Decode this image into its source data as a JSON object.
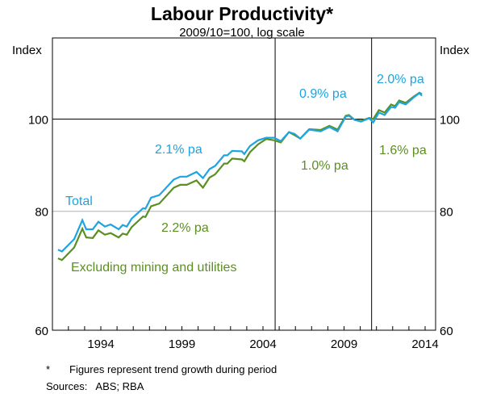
{
  "chart_data": {
    "type": "line",
    "title": "Labour Productivity*",
    "subtitle": "2009/10=100, log scale",
    "ylabel_left": "Index",
    "ylabel_right": "Index",
    "yscale": "log",
    "ylim": [
      60,
      121.7
    ],
    "yticks": [
      60,
      80,
      100
    ],
    "xlim": [
      1991,
      2014.5
    ],
    "xticks": [
      1994,
      1999,
      2004,
      2009,
      2014
    ],
    "vlines": [
      2004.75,
      2010.7
    ],
    "colors": {
      "total": "#1ea4e0",
      "excl": "#5b8f22"
    },
    "x": [
      1991.36,
      1991.6,
      1992.36,
      1992.86,
      1993.1,
      1993.5,
      1993.85,
      1994.25,
      1994.6,
      1995.1,
      1995.35,
      1995.6,
      1995.9,
      1996.6,
      1996.75,
      1997.1,
      1997.6,
      1998.5,
      1998.9,
      1999.3,
      1999.9,
      2000.3,
      2000.7,
      2001.05,
      2001.6,
      2001.8,
      2002.1,
      2002.7,
      2002.85,
      2003.2,
      2003.7,
      2004.2,
      2004.7,
      2005.1,
      2005.6,
      2005.95,
      2006.3,
      2006.85,
      2007.55,
      2008.1,
      2008.6,
      2009.1,
      2009.3,
      2009.65,
      2010.05,
      2010.55,
      2010.8,
      2011.15,
      2011.5,
      2011.9,
      2012.15,
      2012.4,
      2012.8,
      2013.3,
      2013.65,
      2013.8
    ],
    "series": [
      {
        "name": "Total",
        "values": [
          72.9,
          72.6,
          74.8,
          78.3,
          76.6,
          76.6,
          78.0,
          77.1,
          77.5,
          76.6,
          77.4,
          77.1,
          78.6,
          80.6,
          80.5,
          82.7,
          83.2,
          86.4,
          87.0,
          87.0,
          88.0,
          86.7,
          88.6,
          89.3,
          91.6,
          91.6,
          92.6,
          92.5,
          91.9,
          93.7,
          95.0,
          95.6,
          95.6,
          94.8,
          96.9,
          96.5,
          95.4,
          97.5,
          97.1,
          98.1,
          97.1,
          100.6,
          100.8,
          99.8,
          99.4,
          100.2,
          99.2,
          101.6,
          101.0,
          103.0,
          102.8,
          104.2,
          103.6,
          105.4,
          106.5,
          105.8
        ]
      },
      {
        "name": "Excluding mining and utilities",
        "values": [
          71.4,
          71.1,
          73.3,
          76.7,
          75.1,
          75.0,
          76.4,
          75.6,
          75.9,
          75.1,
          75.8,
          75.6,
          77.0,
          79.0,
          78.9,
          81.0,
          81.5,
          84.7,
          85.3,
          85.3,
          86.2,
          84.7,
          86.8,
          87.5,
          89.8,
          89.8,
          90.9,
          90.7,
          90.3,
          92.3,
          94.1,
          95.3,
          95.0,
          94.5,
          96.9,
          96.2,
          95.4,
          97.6,
          97.4,
          98.4,
          97.5,
          100.8,
          101.0,
          99.8,
          99.6,
          100.3,
          100.0,
          102.2,
          101.6,
          103.6,
          103.2,
          104.6,
          104.0,
          105.6,
          106.6,
          106.2
        ]
      }
    ],
    "annotations": {
      "total_label": "Total",
      "excl_label": "Excluding mining and utilities",
      "t1": "2.1% pa",
      "e1": "2.2% pa",
      "t2": "0.9% pa",
      "e2": "1.0% pa",
      "t3": "2.0% pa",
      "e3": "1.6% pa"
    }
  },
  "footnote": {
    "marker": "*",
    "text": "Figures represent trend growth during period",
    "sources": "Sources:   ABS; RBA"
  }
}
